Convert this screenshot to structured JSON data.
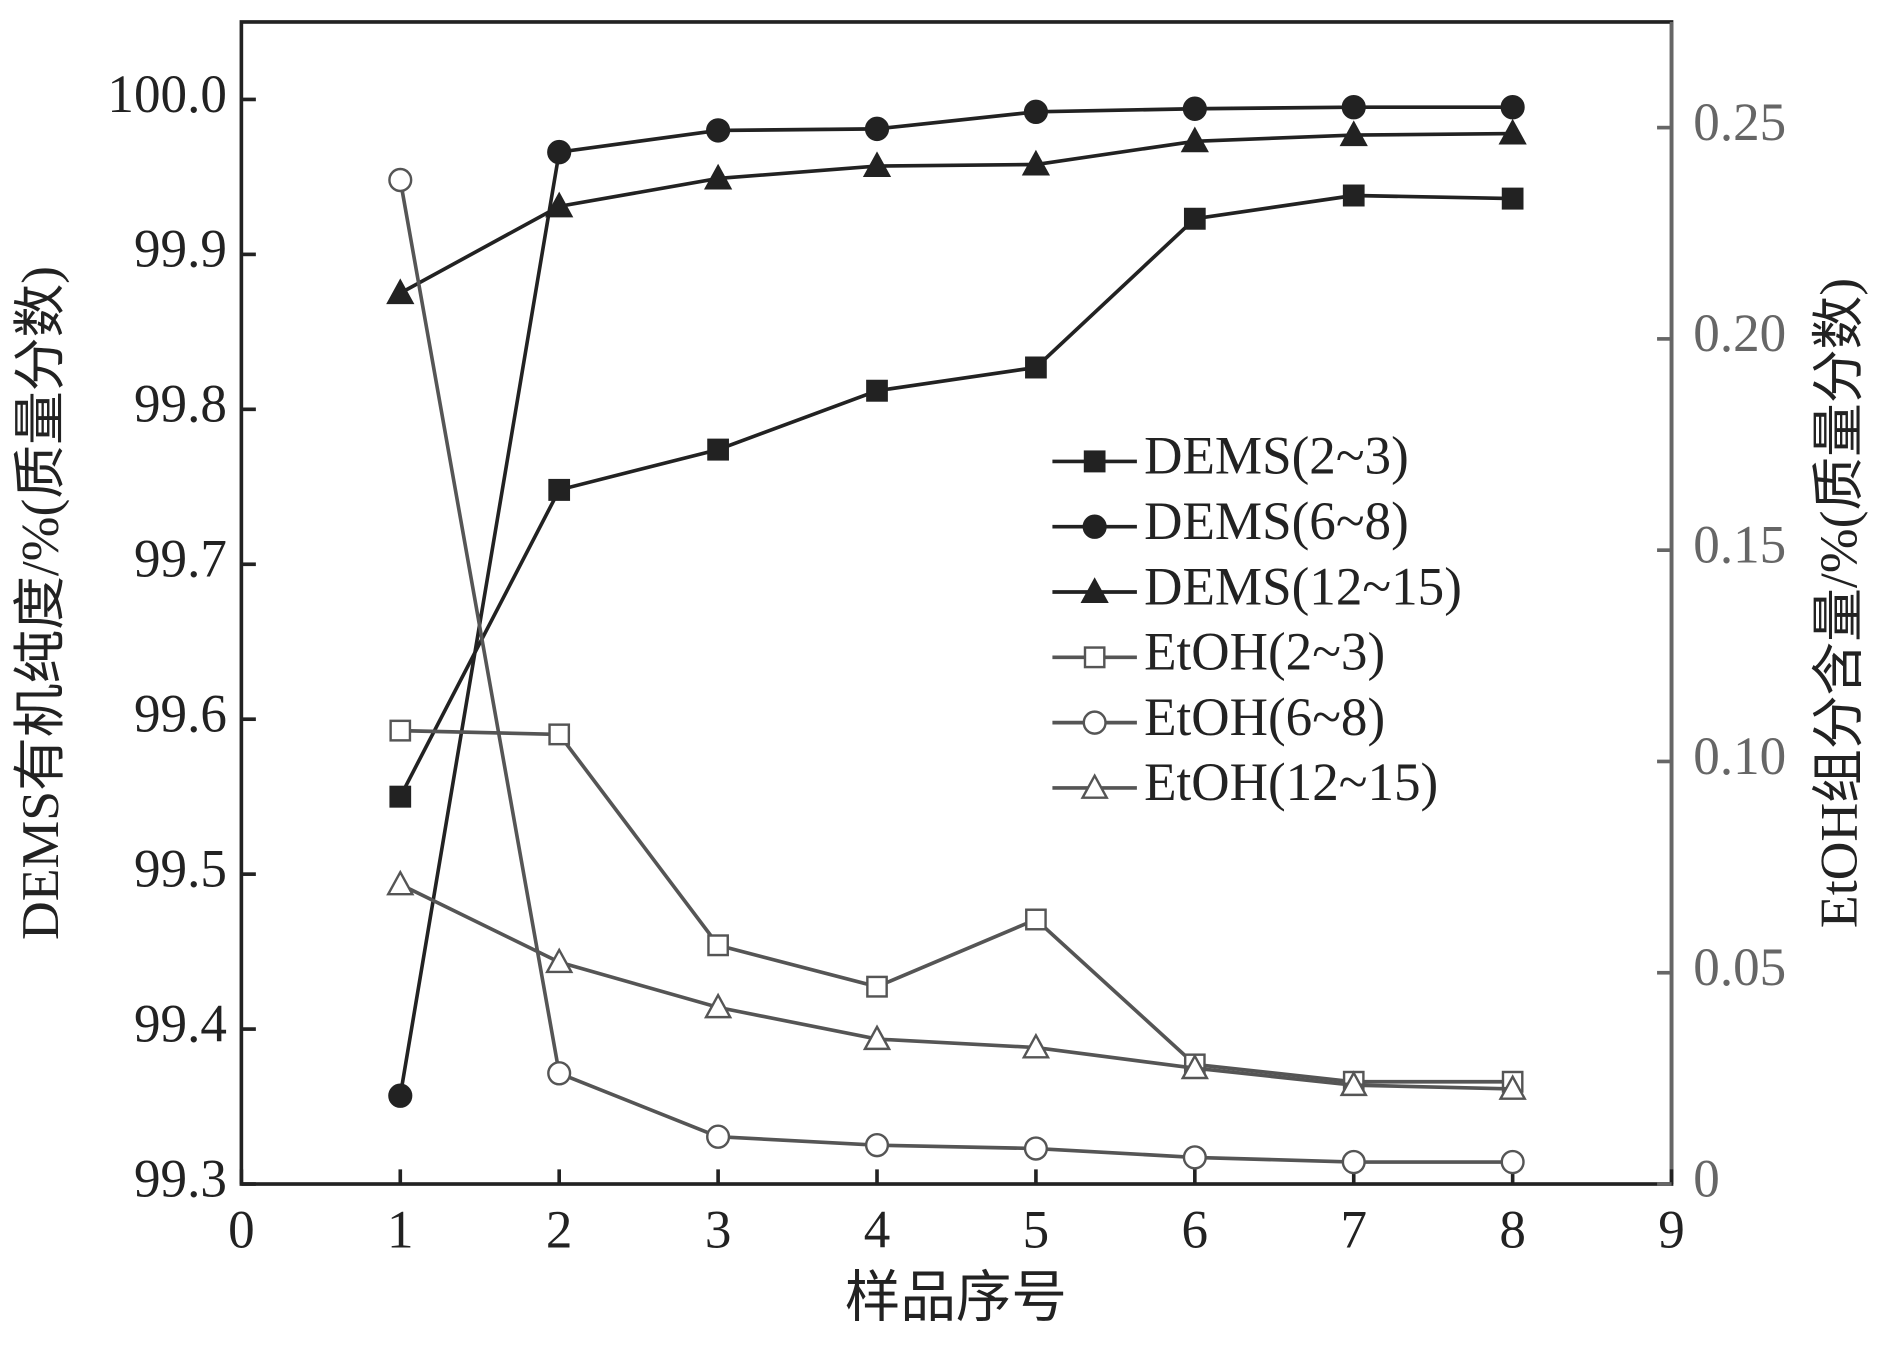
{
  "chart_data": {
    "type": "line",
    "xlabel": "样品序号",
    "ylabel": "DEMS有机纯度/%(质量分数)",
    "y2label": "EtOH组分含量/%(质量分数)",
    "xlim": [
      0,
      9
    ],
    "xticks": [
      0,
      1,
      2,
      3,
      4,
      5,
      6,
      7,
      8,
      9
    ],
    "ylim": [
      99.3,
      100.05
    ],
    "yticks": [
      99.3,
      99.4,
      99.5,
      99.6,
      99.7,
      99.8,
      99.9,
      {
        "value": 100.0,
        "label": "100.0"
      }
    ],
    "y2lim": [
      0,
      0.275
    ],
    "y2ticks": [
      0,
      0.05,
      {
        "value": 0.1,
        "label": "0.10"
      },
      0.15,
      {
        "value": 0.2,
        "label": "0.20"
      },
      0.25
    ],
    "y2_color": "#666666",
    "legend_position": "center-right",
    "x": [
      1,
      2,
      3,
      4,
      5,
      6,
      7,
      8
    ],
    "series": [
      {
        "name": "DEMS(2~3)",
        "color": "#222222",
        "marker": "square",
        "marker_fill": "#222222",
        "values": [
          99.55,
          99.748,
          99.774,
          99.812,
          99.827,
          99.923,
          99.938,
          99.936
        ]
      },
      {
        "name": "DEMS(6~8)",
        "color": "#222222",
        "marker": "circle",
        "marker_fill": "#222222",
        "values": [
          99.357,
          99.966,
          99.98,
          99.981,
          99.992,
          99.994,
          99.995,
          99.995
        ]
      },
      {
        "name": "DEMS(12~15)",
        "color": "#222222",
        "marker": "triangle",
        "marker_fill": "#222222",
        "values": [
          99.875,
          99.931,
          99.949,
          99.957,
          99.958,
          99.973,
          99.977,
          99.978
        ]
      },
      {
        "name": "EtOH(2~3)",
        "color": "#555555",
        "marker": "square",
        "marker_fill": "#ffffff",
        "axis": "y2",
        "values": [
          0.1073,
          0.1064,
          0.0565,
          0.0467,
          0.0626,
          0.0283,
          0.0242,
          0.0242
        ]
      },
      {
        "name": "EtOH(6~8)",
        "color": "#555555",
        "marker": "circle",
        "marker_fill": "#ffffff",
        "axis": "y2",
        "values": [
          0.2376,
          0.0262,
          0.0112,
          0.0092,
          0.0084,
          0.0063,
          0.0052,
          0.0052
        ]
      },
      {
        "name": "EtOH(12~15)",
        "color": "#555555",
        "marker": "triangle",
        "marker_fill": "#ffffff",
        "axis": "y2",
        "values": [
          0.0709,
          0.0525,
          0.0418,
          0.0343,
          0.0323,
          0.0274,
          0.0234,
          0.0225
        ]
      }
    ]
  }
}
